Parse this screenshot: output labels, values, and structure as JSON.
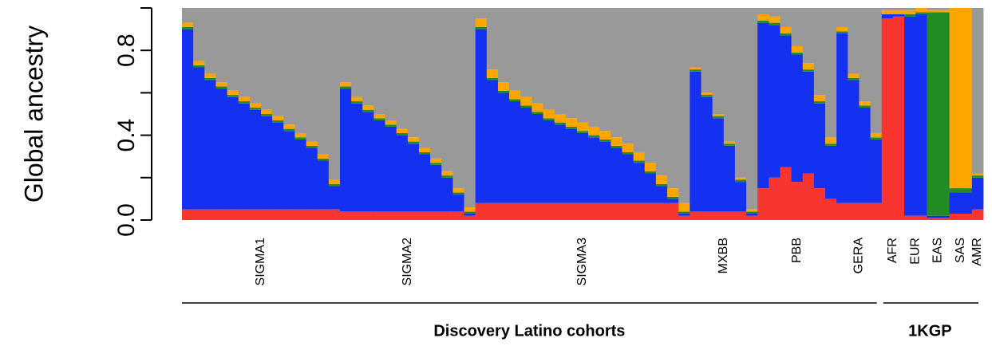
{
  "chart_data": {
    "type": "stacked-bar",
    "ylabel": "Global ancestry",
    "ylim": [
      0,
      1
    ],
    "yticks": [
      {
        "value": 0,
        "label": "0.0"
      },
      0.4,
      0.8
    ],
    "yticks_minor": [
      0.2,
      0.6,
      1
    ],
    "panels": [
      {
        "label": "Discovery Latino cohorts",
        "cohorts": [
          {
            "label": "SIGMA1",
            "series": [
              {
                "color": "#f8352e",
                "values": [
                  0.05,
                  0.05,
                  0.05,
                  0.05,
                  0.05,
                  0.05,
                  0.05,
                  0.05,
                  0.05,
                  0.05,
                  0.05,
                  0.05,
                  0.05,
                  0.05
                ]
              },
              {
                "color": "#1430f0",
                "values": [
                  0.85,
                  0.67,
                  0.61,
                  0.57,
                  0.53,
                  0.5,
                  0.47,
                  0.44,
                  0.41,
                  0.37,
                  0.33,
                  0.29,
                  0.23,
                  0.11
                ]
              },
              {
                "color": "#228b22",
                "values": [
                  0.01,
                  0.01,
                  0.01,
                  0.01,
                  0.01,
                  0.01,
                  0.01,
                  0.01,
                  0.01,
                  0.01,
                  0.01,
                  0.01,
                  0.01,
                  0.01
                ]
              },
              {
                "color": "#ffa500",
                "values": [
                  0.02,
                  0.02,
                  0.02,
                  0.02,
                  0.02,
                  0.02,
                  0.02,
                  0.02,
                  0.02,
                  0.02,
                  0.02,
                  0.02,
                  0.02,
                  0.02
                ]
              },
              {
                "color": "#999999",
                "values": [
                  0.07,
                  0.25,
                  0.31,
                  0.35,
                  0.39,
                  0.42,
                  0.45,
                  0.48,
                  0.51,
                  0.55,
                  0.59,
                  0.63,
                  0.69,
                  0.81
                ]
              }
            ]
          },
          {
            "label": "SIGMA2",
            "series": [
              {
                "color": "#f8352e",
                "values": [
                  0.04,
                  0.04,
                  0.04,
                  0.04,
                  0.04,
                  0.04,
                  0.04,
                  0.04,
                  0.04,
                  0.04,
                  0.04,
                  0.02
                ]
              },
              {
                "color": "#1430f0",
                "values": [
                  0.58,
                  0.51,
                  0.47,
                  0.43,
                  0.4,
                  0.36,
                  0.32,
                  0.27,
                  0.22,
                  0.16,
                  0.08,
                  0.01
                ]
              },
              {
                "color": "#228b22",
                "values": [
                  0.01,
                  0.01,
                  0.01,
                  0.01,
                  0.01,
                  0.01,
                  0.01,
                  0.01,
                  0.01,
                  0.01,
                  0.01,
                  0.01
                ]
              },
              {
                "color": "#ffa500",
                "values": [
                  0.02,
                  0.02,
                  0.02,
                  0.02,
                  0.02,
                  0.02,
                  0.02,
                  0.02,
                  0.02,
                  0.02,
                  0.02,
                  0.02
                ]
              },
              {
                "color": "#999999",
                "values": [
                  0.35,
                  0.42,
                  0.46,
                  0.5,
                  0.53,
                  0.57,
                  0.61,
                  0.66,
                  0.71,
                  0.77,
                  0.85,
                  0.94
                ]
              }
            ]
          },
          {
            "label": "SIGMA3",
            "series": [
              {
                "color": "#f8352e",
                "values": [
                  0.08,
                  0.08,
                  0.08,
                  0.08,
                  0.08,
                  0.08,
                  0.08,
                  0.08,
                  0.08,
                  0.08,
                  0.08,
                  0.08,
                  0.08,
                  0.08,
                  0.08,
                  0.08,
                  0.08,
                  0.08,
                  0.02
                ]
              },
              {
                "color": "#1430f0",
                "values": [
                  0.82,
                  0.58,
                  0.52,
                  0.48,
                  0.45,
                  0.42,
                  0.39,
                  0.37,
                  0.35,
                  0.33,
                  0.31,
                  0.29,
                  0.26,
                  0.23,
                  0.19,
                  0.14,
                  0.08,
                  0.02,
                  0.01
                ]
              },
              {
                "color": "#228b22",
                "values": [
                  0.01,
                  0.01,
                  0.01,
                  0.01,
                  0.01,
                  0.01,
                  0.01,
                  0.01,
                  0.01,
                  0.01,
                  0.01,
                  0.01,
                  0.01,
                  0.01,
                  0.01,
                  0.01,
                  0.01,
                  0.01,
                  0.01
                ]
              },
              {
                "color": "#ffa500",
                "values": [
                  0.04,
                  0.04,
                  0.04,
                  0.04,
                  0.04,
                  0.04,
                  0.04,
                  0.04,
                  0.04,
                  0.04,
                  0.04,
                  0.04,
                  0.04,
                  0.04,
                  0.04,
                  0.04,
                  0.04,
                  0.04,
                  0.04
                ]
              },
              {
                "color": "#999999",
                "values": [
                  0.05,
                  0.29,
                  0.35,
                  0.39,
                  0.42,
                  0.45,
                  0.48,
                  0.5,
                  0.52,
                  0.54,
                  0.56,
                  0.58,
                  0.61,
                  0.64,
                  0.68,
                  0.73,
                  0.79,
                  0.85,
                  0.92
                ]
              }
            ]
          },
          {
            "label": "MXBB",
            "series": [
              {
                "color": "#f8352e",
                "values": [
                  0.04,
                  0.04,
                  0.04,
                  0.04,
                  0.04,
                  0.02
                ]
              },
              {
                "color": "#1430f0",
                "values": [
                  0.66,
                  0.54,
                  0.44,
                  0.31,
                  0.14,
                  0.01
                ]
              },
              {
                "color": "#228b22",
                "values": [
                  0.01,
                  0.01,
                  0.01,
                  0.01,
                  0.01,
                  0.01
                ]
              },
              {
                "color": "#ffa500",
                "values": [
                  0.01,
                  0.01,
                  0.01,
                  0.01,
                  0.01,
                  0.01
                ]
              },
              {
                "color": "#999999",
                "values": [
                  0.28,
                  0.4,
                  0.5,
                  0.63,
                  0.8,
                  0.95
                ]
              }
            ]
          },
          {
            "label": "PBB",
            "series": [
              {
                "color": "#f8352e",
                "values": [
                  0.15,
                  0.2,
                  0.25,
                  0.18,
                  0.22,
                  0.15,
                  0.1
                ]
              },
              {
                "color": "#1430f0",
                "values": [
                  0.78,
                  0.72,
                  0.62,
                  0.6,
                  0.48,
                  0.4,
                  0.25
                ]
              },
              {
                "color": "#228b22",
                "values": [
                  0.01,
                  0.01,
                  0.01,
                  0.01,
                  0.01,
                  0.01,
                  0.01
                ]
              },
              {
                "color": "#ffa500",
                "values": [
                  0.03,
                  0.03,
                  0.03,
                  0.03,
                  0.03,
                  0.03,
                  0.03
                ]
              },
              {
                "color": "#999999",
                "values": [
                  0.03,
                  0.04,
                  0.09,
                  0.18,
                  0.26,
                  0.41,
                  0.61
                ]
              }
            ]
          },
          {
            "label": "GERA",
            "series": [
              {
                "color": "#f8352e",
                "values": [
                  0.08,
                  0.08,
                  0.08,
                  0.08
                ]
              },
              {
                "color": "#1430f0",
                "values": [
                  0.8,
                  0.58,
                  0.45,
                  0.3
                ]
              },
              {
                "color": "#228b22",
                "values": [
                  0.01,
                  0.01,
                  0.01,
                  0.01
                ]
              },
              {
                "color": "#ffa500",
                "values": [
                  0.02,
                  0.02,
                  0.02,
                  0.02
                ]
              },
              {
                "color": "#999999",
                "values": [
                  0.09,
                  0.31,
                  0.44,
                  0.59
                ]
              }
            ]
          }
        ]
      },
      {
        "label": "1KGP",
        "cohorts": [
          {
            "label": "AFR",
            "series": [
              {
                "color": "#f8352e",
                "values": [
                  0.95,
                  0.96
                ]
              },
              {
                "color": "#1430f0",
                "values": [
                  0.02,
                  0.01
                ]
              },
              {
                "color": "#228b22",
                "values": [
                  0,
                  0
                ]
              },
              {
                "color": "#ffa500",
                "values": [
                  0.02,
                  0.02
                ]
              },
              {
                "color": "#999999",
                "values": [
                  0.01,
                  0.01
                ]
              }
            ]
          },
          {
            "label": "EUR",
            "series": [
              {
                "color": "#f8352e",
                "values": [
                  0.02,
                  0.02
                ]
              },
              {
                "color": "#1430f0",
                "values": [
                  0.94,
                  0.95
                ]
              },
              {
                "color": "#228b22",
                "values": [
                  0.01,
                  0.01
                ]
              },
              {
                "color": "#ffa500",
                "values": [
                  0.02,
                  0.02
                ]
              },
              {
                "color": "#999999",
                "values": [
                  0.01,
                  0
                ]
              }
            ]
          },
          {
            "label": "EAS",
            "series": [
              {
                "color": "#f8352e",
                "values": [
                  0.01,
                  0.01
                ]
              },
              {
                "color": "#1430f0",
                "values": [
                  0.01,
                  0.01
                ]
              },
              {
                "color": "#228b22",
                "values": [
                  0.96,
                  0.96
                ]
              },
              {
                "color": "#ffa500",
                "values": [
                  0.01,
                  0.01
                ]
              },
              {
                "color": "#999999",
                "values": [
                  0.01,
                  0.01
                ]
              }
            ]
          },
          {
            "label": "SAS",
            "series": [
              {
                "color": "#f8352e",
                "values": [
                  0.03,
                  0.03
                ]
              },
              {
                "color": "#1430f0",
                "values": [
                  0.1,
                  0.1
                ]
              },
              {
                "color": "#228b22",
                "values": [
                  0.02,
                  0.02
                ]
              },
              {
                "color": "#ffa500",
                "values": [
                  0.85,
                  0.85
                ]
              },
              {
                "color": "#999999",
                "values": [
                  0,
                  0
                ]
              }
            ]
          },
          {
            "label": "AMR",
            "series": [
              {
                "color": "#f8352e",
                "values": [
                  0.05
                ]
              },
              {
                "color": "#1430f0",
                "values": [
                  0.15
                ]
              },
              {
                "color": "#228b22",
                "values": [
                  0.01
                ]
              },
              {
                "color": "#ffa500",
                "values": [
                  0.01
                ]
              },
              {
                "color": "#999999",
                "values": [
                  0.78
                ]
              }
            ]
          }
        ]
      }
    ]
  }
}
